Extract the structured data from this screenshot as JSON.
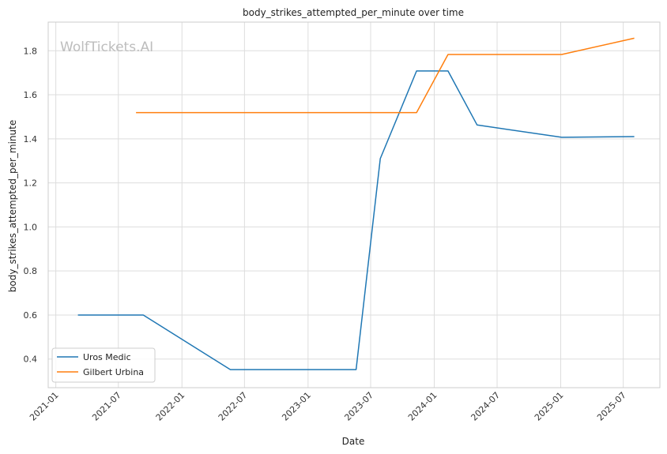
{
  "chart_data": {
    "type": "line",
    "title": "body_strikes_attempted_per_minute over time",
    "xlabel": "Date",
    "ylabel": "body_strikes_attempted_per_minute",
    "watermark": "WolfTickets.AI",
    "x_ticks": [
      "2021-01",
      "2021-07",
      "2022-01",
      "2022-07",
      "2023-01",
      "2023-07",
      "2024-01",
      "2024-07",
      "2025-01",
      "2025-07"
    ],
    "y_ticks": [
      "0.4",
      "0.6",
      "0.8",
      "1.0",
      "1.2",
      "1.4",
      "1.6",
      "1.8"
    ],
    "xlim": [
      "2020-12-10",
      "2025-10-15"
    ],
    "ylim": [
      0.27,
      1.93
    ],
    "grid": true,
    "legend_position": "lower-left",
    "series": [
      {
        "name": "Uros Medic",
        "color": "#1f77b4",
        "points": [
          {
            "x": "2021-03-06",
            "y": 0.6
          },
          {
            "x": "2021-09-11",
            "y": 0.6
          },
          {
            "x": "2022-05-21",
            "y": 0.352
          },
          {
            "x": "2023-05-20",
            "y": 0.352
          },
          {
            "x": "2023-07-29",
            "y": 1.31
          },
          {
            "x": "2023-11-11",
            "y": 1.708
          },
          {
            "x": "2024-02-10",
            "y": 1.708
          },
          {
            "x": "2024-05-04",
            "y": 1.463
          },
          {
            "x": "2025-01-04",
            "y": 1.407
          },
          {
            "x": "2025-08-02",
            "y": 1.41
          }
        ]
      },
      {
        "name": "Gilbert Urbina",
        "color": "#ff7f0e",
        "points": [
          {
            "x": "2021-08-21",
            "y": 1.519
          },
          {
            "x": "2023-11-11",
            "y": 1.519
          },
          {
            "x": "2024-02-10",
            "y": 1.783
          },
          {
            "x": "2025-01-04",
            "y": 1.783
          },
          {
            "x": "2025-08-02",
            "y": 1.857
          }
        ]
      }
    ]
  }
}
